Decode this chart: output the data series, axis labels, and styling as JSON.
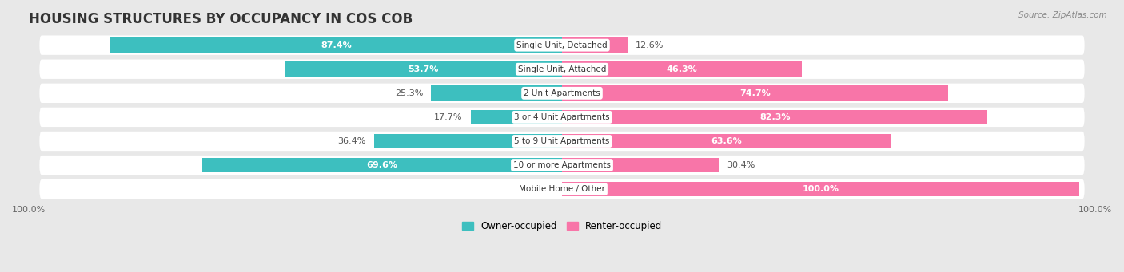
{
  "title": "HOUSING STRUCTURES BY OCCUPANCY IN COS COB",
  "source": "Source: ZipAtlas.com",
  "categories": [
    "Single Unit, Detached",
    "Single Unit, Attached",
    "2 Unit Apartments",
    "3 or 4 Unit Apartments",
    "5 to 9 Unit Apartments",
    "10 or more Apartments",
    "Mobile Home / Other"
  ],
  "owner_pct": [
    87.4,
    53.7,
    25.3,
    17.7,
    36.4,
    69.6,
    0.0
  ],
  "renter_pct": [
    12.6,
    46.3,
    74.7,
    82.3,
    63.6,
    30.4,
    100.0
  ],
  "owner_color": "#3DBFBF",
  "renter_color": "#F875A8",
  "bg_color": "#e8e8e8",
  "row_bg": "#f8f8f8",
  "title_fontsize": 12,
  "label_fontsize": 8.0,
  "bar_height": 0.62,
  "figsize": [
    14.06,
    3.41
  ],
  "dpi": 100,
  "owner_label": "Owner-occupied",
  "renter_label": "Renter-occupied"
}
